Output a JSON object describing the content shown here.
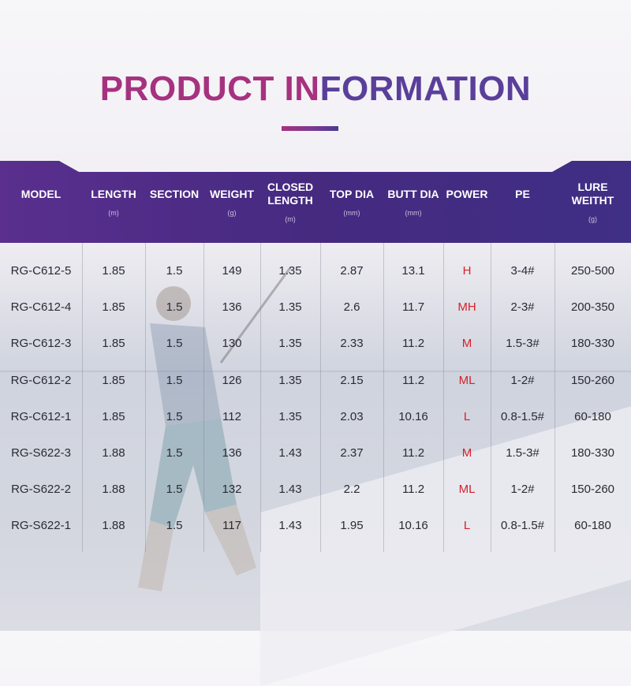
{
  "title": {
    "part1": "PRODUCT IN",
    "part2": "FORMATION"
  },
  "columns": [
    {
      "label": "MODEL",
      "unit": ""
    },
    {
      "label": "LENGTH",
      "unit": "(m)"
    },
    {
      "label": "SECTION",
      "unit": ""
    },
    {
      "label": "WEIGHT",
      "unit": "(g)"
    },
    {
      "label": "CLOSED LENGTH",
      "unit": "(m)"
    },
    {
      "label": "TOP DIA",
      "unit": "(mm)"
    },
    {
      "label": "BUTT DIA",
      "unit": "(mm)"
    },
    {
      "label": "POWER",
      "unit": ""
    },
    {
      "label": "PE",
      "unit": ""
    },
    {
      "label": "LURE WEITHT",
      "unit": "(g)"
    }
  ],
  "rows": [
    [
      "RG-C612-5",
      "1.85",
      "1.5",
      "149",
      "1.35",
      "2.87",
      "13.1",
      "H",
      "3-4#",
      "250-500"
    ],
    [
      "RG-C612-4",
      "1.85",
      "1.5",
      "136",
      "1.35",
      "2.6",
      "11.7",
      "MH",
      "2-3#",
      "200-350"
    ],
    [
      "RG-C612-3",
      "1.85",
      "1.5",
      "130",
      "1.35",
      "2.33",
      "11.2",
      "M",
      "1.5-3#",
      "180-330"
    ],
    [
      "RG-C612-2",
      "1.85",
      "1.5",
      "126",
      "1.35",
      "2.15",
      "11.2",
      "ML",
      "1-2#",
      "150-260"
    ],
    [
      "RG-C612-1",
      "1.85",
      "1.5",
      "112",
      "1.35",
      "2.03",
      "10.16",
      "L",
      "0.8-1.5#",
      "60-180"
    ],
    [
      "RG-S622-3",
      "1.88",
      "1.5",
      "136",
      "1.43",
      "2.37",
      "11.2",
      "M",
      "1.5-3#",
      "180-330"
    ],
    [
      "RG-S622-2",
      "1.88",
      "1.5",
      "132",
      "1.43",
      "2.2",
      "11.2",
      "ML",
      "1-2#",
      "150-260"
    ],
    [
      "RG-S622-1",
      "1.88",
      "1.5",
      "117",
      "1.43",
      "1.95",
      "10.16",
      "L",
      "0.8-1.5#",
      "60-180"
    ]
  ],
  "colors": {
    "title_pink": "#a6327f",
    "title_purple": "#5a3f9a",
    "header_band": "#4b2a86",
    "power_red": "#d6202a"
  }
}
